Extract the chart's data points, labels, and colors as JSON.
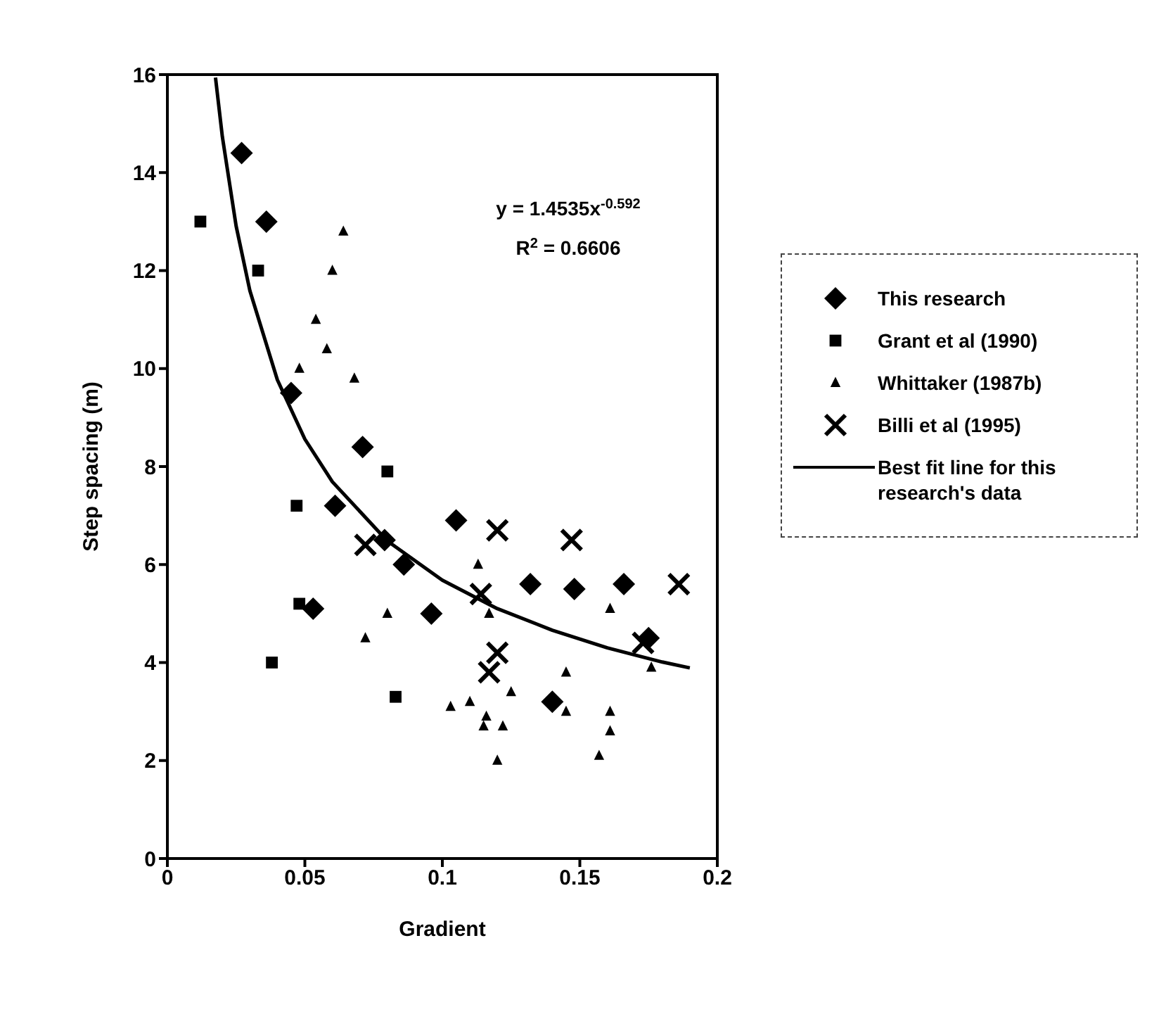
{
  "chart_data": {
    "type": "scatter",
    "xlabel": "Gradient",
    "ylabel": "Step spacing (m)",
    "xlim": [
      0,
      0.2
    ],
    "xticks": [
      0,
      0.05,
      0.1,
      0.15,
      0.2
    ],
    "ylim": [
      0,
      16
    ],
    "yticks": [
      0,
      2,
      4,
      6,
      8,
      10,
      12,
      14,
      16
    ],
    "legend": "right",
    "annotations": [
      "y = 1.4535x$^{-0.592}$",
      "R$^{2}$ = 0.6606"
    ],
    "series": [
      {
        "name": "This research",
        "color": "#000000",
        "marker": "diamond",
        "x": [
          0.027,
          0.036,
          0.045,
          0.071,
          0.061,
          0.079,
          0.086,
          0.105,
          0.096,
          0.132,
          0.148,
          0.166,
          0.175,
          0.14,
          0.053
        ],
        "values": [
          14.4,
          13.0,
          9.5,
          8.4,
          7.2,
          6.5,
          6.0,
          6.9,
          5.0,
          5.6,
          5.5,
          5.6,
          4.5,
          3.2,
          5.1
        ]
      },
      {
        "name": "Grant et al (1990)",
        "color": "#000000",
        "marker": "square",
        "x": [
          0.012,
          0.033,
          0.08,
          0.047,
          0.048,
          0.038,
          0.083
        ],
        "values": [
          13.0,
          12.0,
          7.9,
          7.2,
          5.2,
          4.0,
          3.3
        ]
      },
      {
        "name": "Whittaker (1987b)",
        "color": "#000000",
        "marker": "triangle",
        "x": [
          0.064,
          0.06,
          0.054,
          0.058,
          0.048,
          0.068,
          0.113,
          0.08,
          0.072,
          0.117,
          0.161,
          0.176,
          0.145,
          0.125,
          0.103,
          0.11,
          0.116,
          0.115,
          0.122,
          0.145,
          0.161,
          0.161,
          0.157,
          0.12
        ],
        "values": [
          12.8,
          12.0,
          11.0,
          10.4,
          10.0,
          9.8,
          6.0,
          5.0,
          4.5,
          5.0,
          5.1,
          3.9,
          3.8,
          3.4,
          3.1,
          3.2,
          2.9,
          2.7,
          2.7,
          3.0,
          3.0,
          2.6,
          2.1,
          2.0
        ]
      },
      {
        "name": "Billi et al (1995)",
        "color": "#000000",
        "marker": "cross",
        "x": [
          0.072,
          0.12,
          0.147,
          0.186,
          0.114,
          0.12,
          0.117,
          0.173
        ],
        "values": [
          6.4,
          6.7,
          6.5,
          5.6,
          5.4,
          4.2,
          3.8,
          4.4
        ]
      },
      {
        "name": "Best fit line for this research's data",
        "type": "line",
        "color": "#000000",
        "marker": "none",
        "line_style": "solid",
        "x": [
          0.0175,
          0.02,
          0.025,
          0.03,
          0.04,
          0.05,
          0.06,
          0.08,
          0.1,
          0.12,
          0.14,
          0.16,
          0.18,
          0.19
        ],
        "values": [
          15.94,
          14.73,
          12.91,
          11.59,
          9.77,
          8.56,
          7.69,
          6.48,
          5.68,
          5.1,
          4.66,
          4.3,
          4.01,
          3.89
        ]
      }
    ]
  }
}
